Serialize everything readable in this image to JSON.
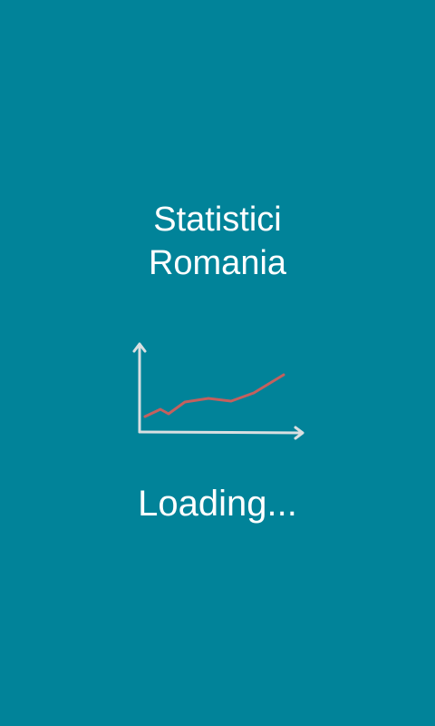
{
  "app": {
    "title_line1": "Statistici",
    "title_line2": "Romania",
    "loading_text": "Loading..."
  },
  "icon": {
    "name": "line-chart-icon"
  },
  "colors": {
    "background": "#018399",
    "text": "#ffffff",
    "chart_axis": "#d9dfe1",
    "chart_line": "#c4605e"
  }
}
